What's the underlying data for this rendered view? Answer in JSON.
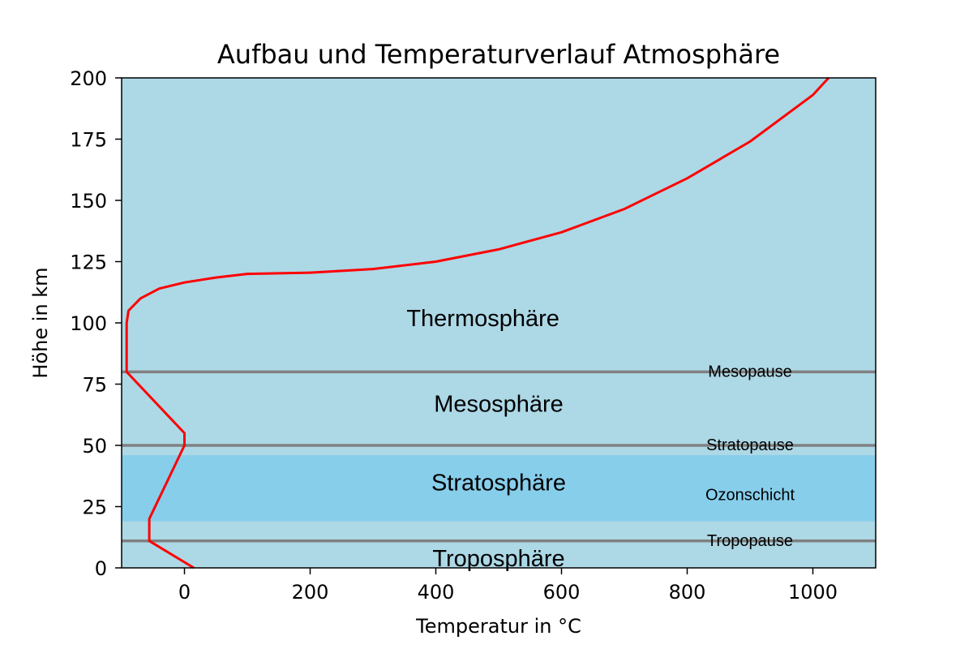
{
  "chart_data": {
    "type": "line",
    "title": "Aufbau und Temperaturverlauf Atmosphäre",
    "xlabel": "Temperatur in °C",
    "ylabel": "Höhe in km",
    "xlim": [
      -100,
      1100
    ],
    "ylim": [
      0,
      200
    ],
    "xticks": [
      0,
      200,
      400,
      600,
      800,
      1000
    ],
    "yticks": [
      0,
      25,
      50,
      75,
      100,
      125,
      150,
      175,
      200
    ],
    "grid": false,
    "background_color": "#add8e6",
    "ozone_color": "#87ceeb",
    "line_color": "#ff0000",
    "boundary_color": "#808080",
    "series": [
      {
        "points": [
          {
            "x": 15,
            "y": 0
          },
          {
            "x": -56,
            "y": 11
          },
          {
            "x": -56,
            "y": 20
          },
          {
            "x": 0,
            "y": 50
          },
          {
            "x": 0,
            "y": 55
          },
          {
            "x": -92,
            "y": 80
          },
          {
            "x": -92,
            "y": 100
          },
          {
            "x": -89,
            "y": 105
          },
          {
            "x": -70,
            "y": 110
          },
          {
            "x": -40,
            "y": 114
          },
          {
            "x": 0,
            "y": 116.5
          },
          {
            "x": 50,
            "y": 118.5
          },
          {
            "x": 100,
            "y": 120
          },
          {
            "x": 200,
            "y": 120.5
          },
          {
            "x": 300,
            "y": 122
          },
          {
            "x": 400,
            "y": 125
          },
          {
            "x": 500,
            "y": 130
          },
          {
            "x": 600,
            "y": 137
          },
          {
            "x": 700,
            "y": 146.5
          },
          {
            "x": 800,
            "y": 159
          },
          {
            "x": 900,
            "y": 174
          },
          {
            "x": 1000,
            "y": 193
          },
          {
            "x": 1025,
            "y": 200
          }
        ]
      }
    ],
    "ozone_layer": {
      "y_from": 19,
      "y_to": 46,
      "label": "Ozonschicht",
      "label_x": 900,
      "label_y": 30
    },
    "boundaries": [
      {
        "y": 11,
        "label": "Tropopause",
        "label_x": 900
      },
      {
        "y": 50,
        "label": "Stratopause",
        "label_x": 900
      },
      {
        "y": 80,
        "label": "Mesopause",
        "label_x": 900
      }
    ],
    "layers": [
      {
        "label": "Troposphäre",
        "x": 500,
        "y": 4
      },
      {
        "label": "Stratosphäre",
        "x": 500,
        "y": 35
      },
      {
        "label": "Mesosphäre",
        "x": 500,
        "y": 67
      },
      {
        "label": "Thermosphäre",
        "x": 475,
        "y": 102
      }
    ]
  }
}
